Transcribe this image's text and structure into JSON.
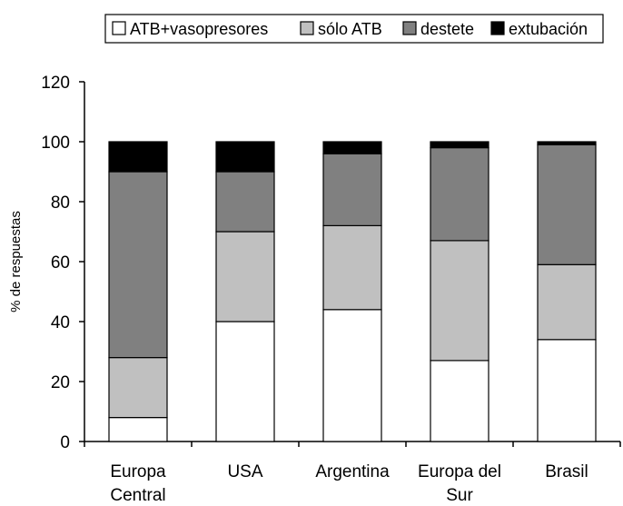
{
  "chart_data": {
    "type": "bar",
    "stacked": true,
    "categories": [
      [
        "Europa",
        "Central"
      ],
      [
        "USA"
      ],
      [
        "Argentina"
      ],
      [
        "Europa del",
        "Sur"
      ],
      [
        "Brasil"
      ]
    ],
    "series": [
      {
        "name": "ATB+vasopresores",
        "color": "#ffffff",
        "values": [
          8,
          40,
          44,
          27,
          34
        ]
      },
      {
        "name": "sólo ATB",
        "color": "#c0c0c0",
        "values": [
          20,
          30,
          28,
          40,
          25
        ]
      },
      {
        "name": "destete",
        "color": "#808080",
        "values": [
          62,
          20,
          24,
          31,
          40
        ]
      },
      {
        "name": "extubación",
        "color": "#000000",
        "values": [
          10,
          10,
          4,
          2,
          1
        ]
      }
    ],
    "ylabel": "% de respuestas",
    "ylim": [
      0,
      120
    ],
    "yticks": [
      0,
      20,
      40,
      60,
      80,
      100,
      120
    ],
    "grid": false,
    "legend_position": "top-right"
  }
}
